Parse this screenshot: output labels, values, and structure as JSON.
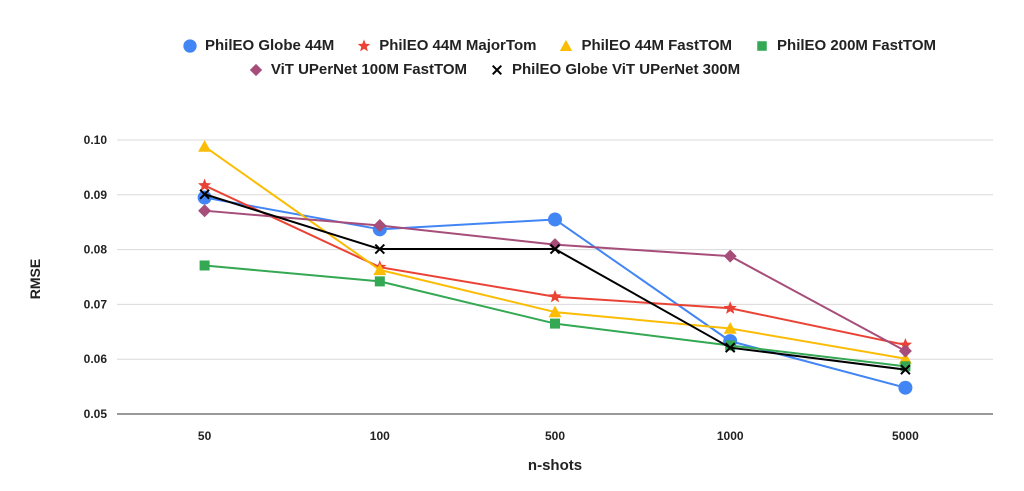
{
  "chart_data": {
    "type": "line",
    "title": "",
    "xlabel": "n-shots",
    "ylabel": "RMSE",
    "categories": [
      "50",
      "100",
      "500",
      "1000",
      "5000"
    ],
    "ylim": [
      0.05,
      0.1
    ],
    "yticks": [
      "0.05",
      "0.06",
      "0.07",
      "0.08",
      "0.09",
      "0.10"
    ],
    "grid": true,
    "legend_position": "top",
    "series": [
      {
        "name": "PhilEO Globe 44M",
        "color": "#4285f4",
        "marker": "circle",
        "values": [
          0.0895,
          0.0837,
          0.0855,
          0.0633,
          0.0548
        ]
      },
      {
        "name": "PhilEO 44M MajorTom",
        "color": "#ea4335",
        "marker": "star",
        "values": [
          0.0917,
          0.0768,
          0.0714,
          0.0693,
          0.0626
        ]
      },
      {
        "name": "PhilEO 44M FastTOM",
        "color": "#fbbc04",
        "marker": "triangle",
        "values": [
          0.0988,
          0.0763,
          0.0686,
          0.0656,
          0.0601
        ]
      },
      {
        "name": "PhilEO 200M FastTOM",
        "color": "#34a853",
        "marker": "square",
        "values": [
          0.0771,
          0.0742,
          0.0665,
          0.0625,
          0.0587
        ]
      },
      {
        "name": "ViT UPerNet 100M FastTOM",
        "color": "#a64d79",
        "marker": "diamond",
        "values": [
          0.0871,
          0.0844,
          0.0809,
          0.0788,
          0.0615
        ]
      },
      {
        "name": "PhilEO Globe ViT UPerNet 300M",
        "color": "#000000",
        "marker": "x",
        "values": [
          0.0901,
          0.0801,
          0.0801,
          0.0621,
          0.0581
        ]
      }
    ]
  }
}
